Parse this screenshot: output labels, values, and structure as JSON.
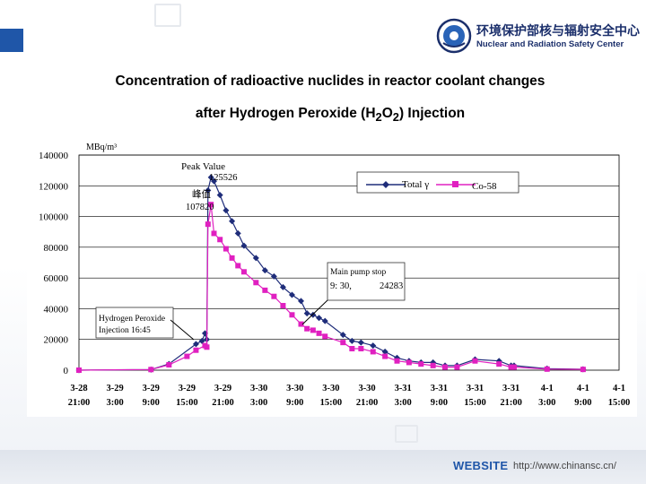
{
  "header": {
    "org_cn": "环境保护部核与辐射安全中心",
    "org_en": "Nuclear and Radiation Safety Center",
    "accent_color": "#1f56a8",
    "logo_icon": "emblem-icon"
  },
  "title": {
    "line1": "Concentration of radioactive nuclides in reactor coolant changes",
    "line2_prefix": "after Hydrogen Peroxide (H",
    "line2_sub1": "2",
    "line2_mid": "O",
    "line2_sub2": "2",
    "line2_suffix": ") Injection"
  },
  "footer": {
    "label": "WEBSITE",
    "url": "http://www.chinansc.cn/"
  },
  "chart_data": {
    "type": "line",
    "unit": "MBq/m³",
    "ylim": [
      0,
      140000
    ],
    "yticks": [
      "140000",
      "120000",
      "100000",
      "80000",
      "60000",
      "40000",
      "20000",
      "0"
    ],
    "ytick_values": [
      140000,
      120000,
      100000,
      80000,
      60000,
      40000,
      20000,
      0
    ],
    "xticks": [
      [
        "3-28",
        "21:00"
      ],
      [
        "3-29",
        "3:00"
      ],
      [
        "3-29",
        "9:00"
      ],
      [
        "3-29",
        "15:00"
      ],
      [
        "3-29",
        "21:00"
      ],
      [
        "3-30",
        "3:00"
      ],
      [
        "3-30",
        "9:00"
      ],
      [
        "3-30",
        "15:00"
      ],
      [
        "3-30",
        "21:00"
      ],
      [
        "3-31",
        "3:00"
      ],
      [
        "3-31",
        "9:00"
      ],
      [
        "3-31",
        "15:00"
      ],
      [
        "3-31",
        "21:00"
      ],
      [
        "4-1",
        "3:00"
      ],
      [
        "4-1",
        "9:00"
      ],
      [
        "4-1",
        "15:00"
      ]
    ],
    "grid": "horizontal",
    "legend_position": "top-right",
    "series": [
      {
        "name": "Total γ",
        "color": "#1f2d7a",
        "marker": "diamond",
        "points": [
          [
            0,
            0
          ],
          [
            12,
            400
          ],
          [
            15,
            4000
          ],
          [
            19.5,
            17000
          ],
          [
            20.5,
            19000
          ],
          [
            21,
            24000
          ],
          [
            21.3,
            20000
          ],
          [
            21.5,
            117000
          ],
          [
            22,
            125526
          ],
          [
            22.5,
            123000
          ],
          [
            23.5,
            114000
          ],
          [
            24.5,
            104000
          ],
          [
            25.5,
            97000
          ],
          [
            26.5,
            89000
          ],
          [
            27.5,
            81000
          ],
          [
            29.5,
            73000
          ],
          [
            31,
            65000
          ],
          [
            32.5,
            61000
          ],
          [
            34,
            54000
          ],
          [
            35.5,
            49000
          ],
          [
            37,
            45000
          ],
          [
            38,
            37000
          ],
          [
            39,
            36000
          ],
          [
            40,
            34000
          ],
          [
            41,
            32000
          ],
          [
            44,
            23000
          ],
          [
            45.5,
            19000
          ],
          [
            47,
            18000
          ],
          [
            49,
            16000
          ],
          [
            51,
            12000
          ],
          [
            53,
            8000
          ],
          [
            55,
            6000
          ],
          [
            57,
            5000
          ],
          [
            59,
            5000
          ],
          [
            61,
            3000
          ],
          [
            63,
            3000
          ],
          [
            66,
            7000
          ],
          [
            70,
            6000
          ],
          [
            72,
            3000
          ],
          [
            72.5,
            3000
          ],
          [
            78,
            1000
          ],
          [
            84,
            600
          ]
        ]
      },
      {
        "name": "Co-58",
        "color": "#e020c0",
        "marker": "square",
        "points": [
          [
            0,
            0
          ],
          [
            12,
            400
          ],
          [
            15,
            3500
          ],
          [
            18,
            9000
          ],
          [
            19.5,
            13000
          ],
          [
            21,
            16000
          ],
          [
            21.3,
            15000
          ],
          [
            21.5,
            95000
          ],
          [
            22,
            107820
          ],
          [
            22.5,
            89000
          ],
          [
            23.5,
            85000
          ],
          [
            24.5,
            79000
          ],
          [
            25.5,
            73000
          ],
          [
            26.5,
            68000
          ],
          [
            27.5,
            64000
          ],
          [
            29.5,
            57000
          ],
          [
            31,
            52000
          ],
          [
            32.5,
            48000
          ],
          [
            34,
            42000
          ],
          [
            35.5,
            36000
          ],
          [
            37,
            30000
          ],
          [
            38,
            27000
          ],
          [
            39,
            26000
          ],
          [
            40,
            24000
          ],
          [
            41,
            22000
          ],
          [
            44,
            18000
          ],
          [
            45.5,
            14000
          ],
          [
            47,
            14000
          ],
          [
            49,
            12000
          ],
          [
            51,
            9000
          ],
          [
            53,
            6000
          ],
          [
            55,
            5000
          ],
          [
            57,
            4000
          ],
          [
            59,
            3000
          ],
          [
            61,
            2000
          ],
          [
            63,
            2000
          ],
          [
            66,
            6000
          ],
          [
            70,
            4000
          ],
          [
            72,
            2000
          ],
          [
            72.5,
            2000
          ],
          [
            78,
            700
          ],
          [
            84,
            500
          ]
        ]
      }
    ],
    "annotations": {
      "peak": {
        "label": "Peak Value",
        "value_label": "125526",
        "cn_label": "峰值",
        "co58_label": "107820",
        "x": 22,
        "y": 125526
      },
      "injection": {
        "line1": "Hydrogen Peroxide",
        "line2": "Injection 16:45",
        "x": 21,
        "y": 22000
      },
      "pump": {
        "line1": "Main pump stop",
        "line2_time": "9: 30,",
        "line2_value": "24283",
        "x": 41,
        "y": 31000
      }
    }
  }
}
